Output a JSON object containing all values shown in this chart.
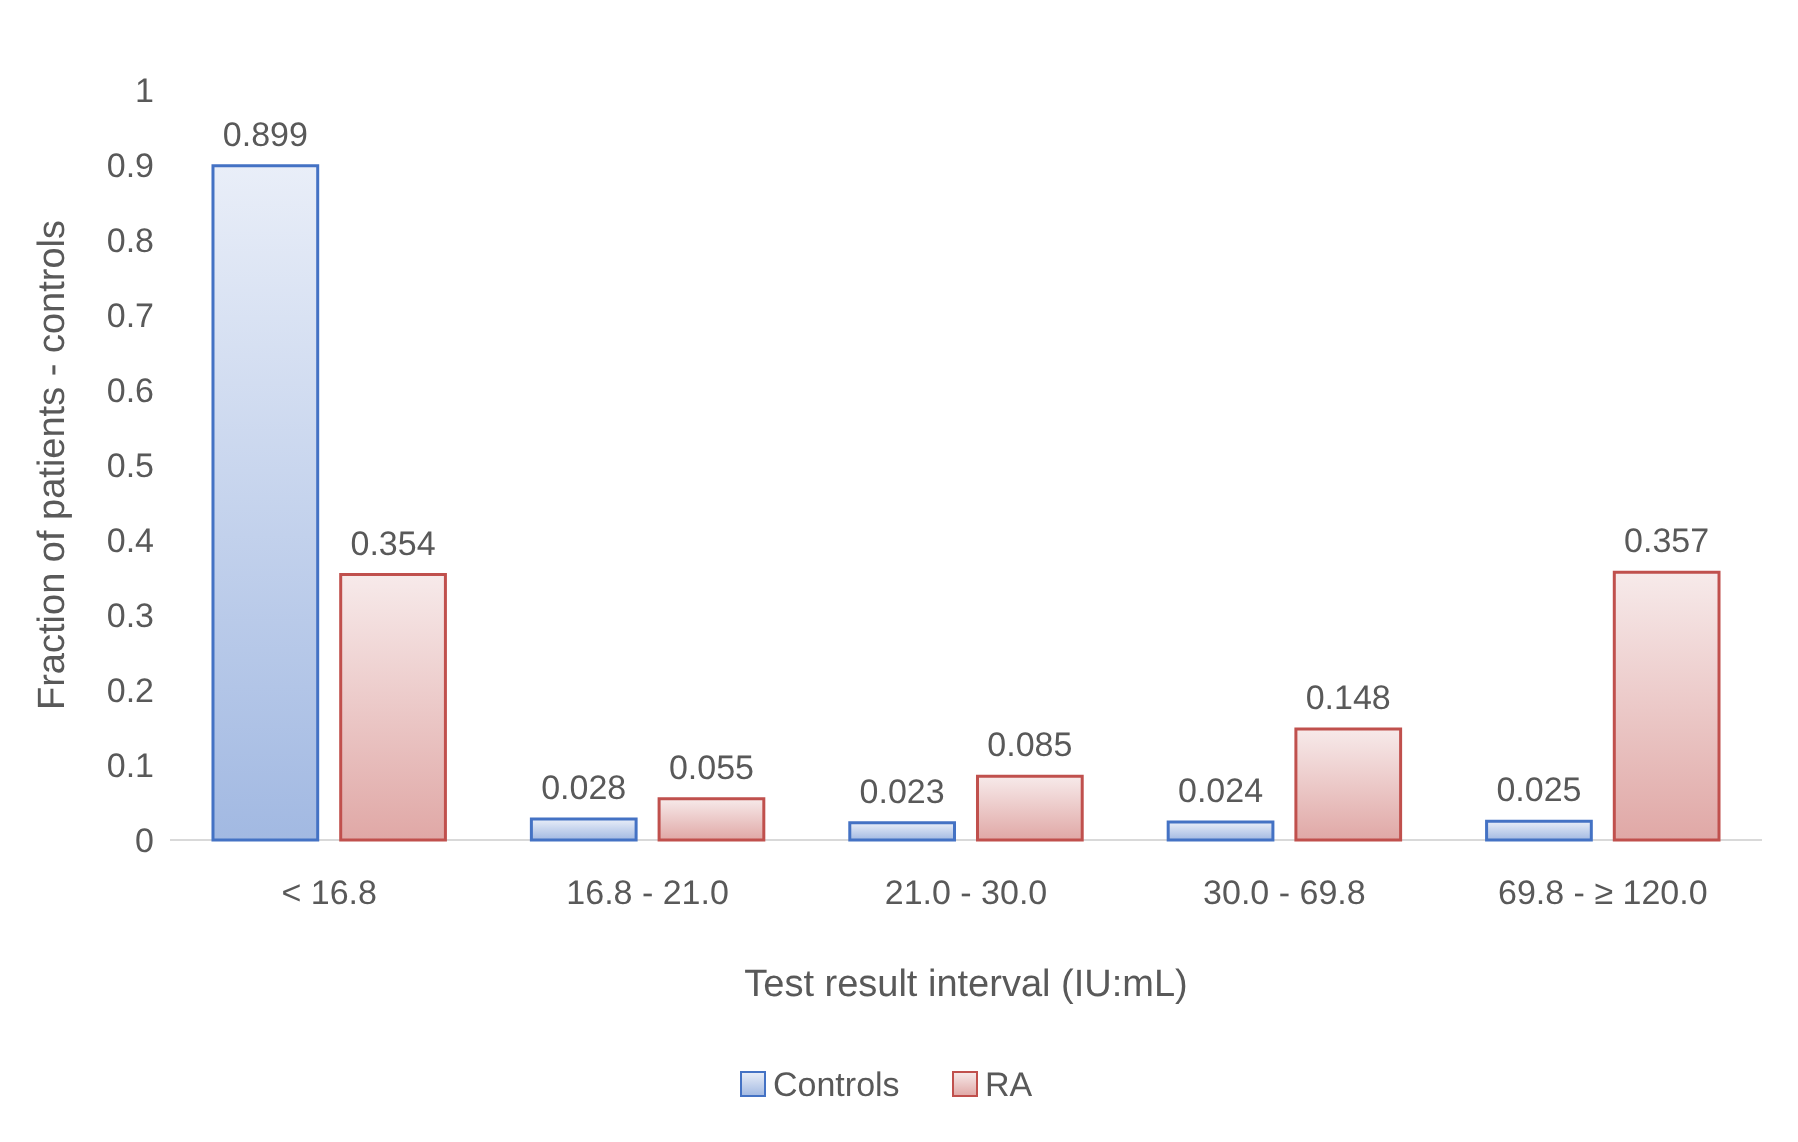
{
  "chart_data": {
    "type": "bar",
    "xlabel": "Test result interval (IU:mL)",
    "ylabel": "Fraction of patients - controls",
    "categories": [
      "< 16.8",
      "16.8 - 21.0",
      "21.0 - 30.0",
      "30.0 - 69.8",
      "69.8 - ≥ 120.0"
    ],
    "series": [
      {
        "name": "Controls",
        "color": "#4472c4",
        "values": [
          0.899,
          0.028,
          0.023,
          0.024,
          0.025
        ]
      },
      {
        "name": "RA",
        "color": "#c0504d",
        "values": [
          0.354,
          0.055,
          0.085,
          0.148,
          0.357
        ]
      }
    ],
    "ylim": [
      0,
      1
    ],
    "yticks": [
      0,
      0.1,
      0.2,
      0.3,
      0.4,
      0.5,
      0.6,
      0.7,
      0.8,
      0.9,
      1
    ],
    "data_labels": true,
    "legend": "bottom",
    "grid": false
  }
}
